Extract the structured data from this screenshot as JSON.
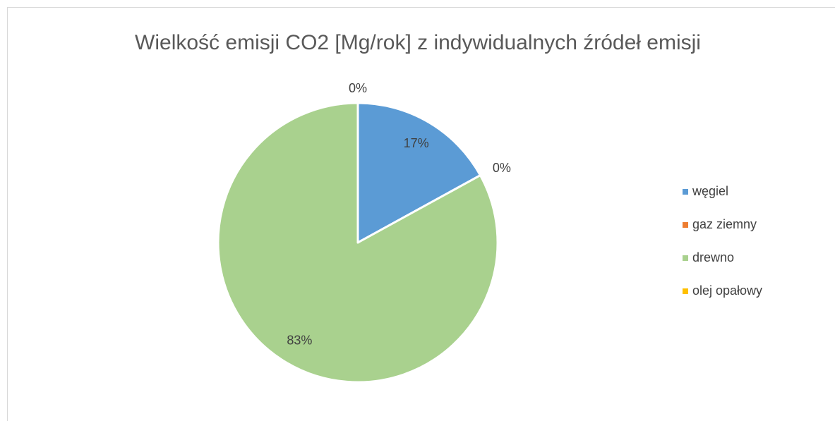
{
  "chart_data": {
    "type": "pie",
    "title": "Wielkość emisji CO2 [Mg/rok] z indywidualnych źródeł emisji",
    "categories": [
      "węgiel",
      "gaz ziemny",
      "drewno",
      "olej opałowy"
    ],
    "values": [
      17,
      0,
      83,
      0
    ],
    "value_labels": [
      "17%",
      "0%",
      "83%",
      "0%"
    ],
    "colors": [
      "#5b9bd5",
      "#ed7d31",
      "#a9d18e",
      "#ffc000"
    ],
    "legend": "right"
  }
}
